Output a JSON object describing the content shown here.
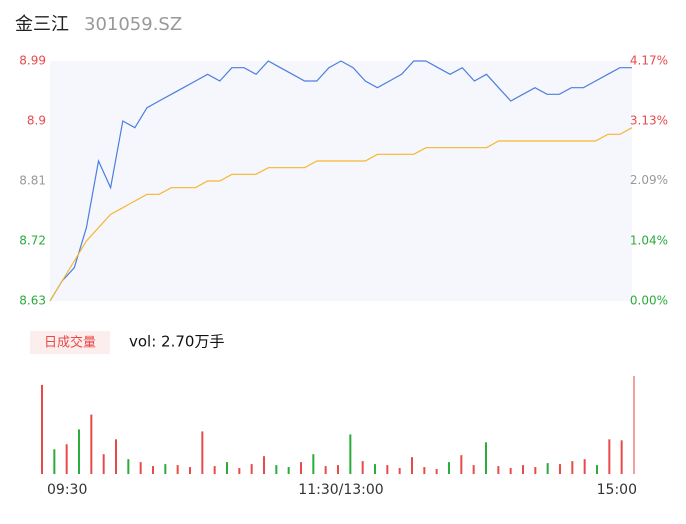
{
  "chart_data": [
    {
      "type": "line",
      "title": "金三江",
      "subtitle": "301059.SZ",
      "categories": [
        "09:30",
        null,
        null,
        null,
        null,
        null,
        null,
        null,
        null,
        null,
        null,
        null,
        null,
        null,
        null,
        null,
        null,
        null,
        null,
        null,
        null,
        null,
        null,
        null,
        "11:30/13:00",
        null,
        null,
        null,
        null,
        null,
        null,
        null,
        null,
        null,
        null,
        null,
        null,
        null,
        null,
        null,
        null,
        null,
        null,
        null,
        null,
        null,
        null,
        null,
        "15:00"
      ],
      "series": [
        {
          "name": "price",
          "color": "#4a7fe0",
          "values": [
            8.63,
            8.66,
            8.68,
            8.74,
            8.84,
            8.8,
            8.9,
            8.89,
            8.92,
            8.93,
            8.94,
            8.95,
            8.96,
            8.97,
            8.96,
            8.98,
            8.98,
            8.97,
            8.99,
            8.98,
            8.97,
            8.96,
            8.96,
            8.98,
            8.99,
            8.98,
            8.96,
            8.95,
            8.96,
            8.97,
            8.99,
            8.99,
            8.98,
            8.97,
            8.98,
            8.96,
            8.97,
            8.95,
            8.93,
            8.94,
            8.95,
            8.94,
            8.94,
            8.95,
            8.95,
            8.96,
            8.97,
            8.98,
            8.98
          ]
        },
        {
          "name": "average",
          "color": "#f5b731",
          "values": [
            8.63,
            8.66,
            8.69,
            8.72,
            8.74,
            8.76,
            8.77,
            8.78,
            8.79,
            8.79,
            8.8,
            8.8,
            8.8,
            8.81,
            8.81,
            8.82,
            8.82,
            8.82,
            8.83,
            8.83,
            8.83,
            8.83,
            8.84,
            8.84,
            8.84,
            8.84,
            8.84,
            8.85,
            8.85,
            8.85,
            8.85,
            8.86,
            8.86,
            8.86,
            8.86,
            8.86,
            8.86,
            8.87,
            8.87,
            8.87,
            8.87,
            8.87,
            8.87,
            8.87,
            8.87,
            8.87,
            8.88,
            8.88,
            8.89
          ]
        }
      ],
      "ylim": [
        8.63,
        8.99
      ],
      "yticks": [
        8.63,
        8.72,
        8.81,
        8.9,
        8.99
      ],
      "ytick_colors": [
        "#2bab3c",
        "#2bab3c",
        "#999999",
        "#e84a4a",
        "#e84a4a"
      ],
      "y2lim": [
        0,
        4.17
      ],
      "y2ticks": [
        {
          "value": 0,
          "label": "0.00%"
        },
        {
          "value": 1.04,
          "label": "1.04%"
        },
        {
          "value": 2.09,
          "label": "2.09%"
        },
        {
          "value": 3.13,
          "label": "3.13%"
        },
        {
          "value": 4.17,
          "label": "4.17%"
        }
      ],
      "area_color": "#f6f7fc"
    },
    {
      "type": "bar",
      "title": "日成交量",
      "subtitle": "vol: 2.70万手",
      "values": [
        9000,
        2500,
        3000,
        4500,
        6000,
        2000,
        3500,
        1500,
        1200,
        800,
        1000,
        900,
        700,
        4300,
        800,
        1200,
        600,
        1000,
        1800,
        900,
        700,
        1200,
        2000,
        800,
        900,
        4000,
        1300,
        1000,
        900,
        600,
        1700,
        700,
        500,
        1200,
        1900,
        900,
        3200,
        800,
        600,
        900,
        700,
        1100,
        1000,
        1300,
        1500,
        900,
        3500,
        3400,
        9900
      ],
      "colors": [
        "#e84a4a",
        "#2bab3c",
        "#e84a4a",
        "#2bab3c",
        "#e84a4a",
        "#e84a4a",
        "#e84a4a",
        "#2bab3c",
        "#e84a4a",
        "#e84a4a",
        "#2bab3c",
        "#e84a4a",
        "#e84a4a",
        "#e84a4a",
        "#e84a4a",
        "#2bab3c",
        "#e84a4a",
        "#e84a4a",
        "#e84a4a",
        "#2bab3c",
        "#2bab3c",
        "#e84a4a",
        "#2bab3c",
        "#e84a4a",
        "#e84a4a",
        "#2bab3c",
        "#e84a4a",
        "#2bab3c",
        "#e84a4a",
        "#e84a4a",
        "#e84a4a",
        "#e84a4a",
        "#e84a4a",
        "#2bab3c",
        "#e84a4a",
        "#e84a4a",
        "#2bab3c",
        "#e84a4a",
        "#e84a4a",
        "#e84a4a",
        "#e84a4a",
        "#2bab3c",
        "#e84a4a",
        "#e84a4a",
        "#e84a4a",
        "#2bab3c",
        "#e84a4a",
        "#e84a4a",
        "#f4a0a0"
      ],
      "ylim": [
        0,
        10000
      ]
    }
  ]
}
